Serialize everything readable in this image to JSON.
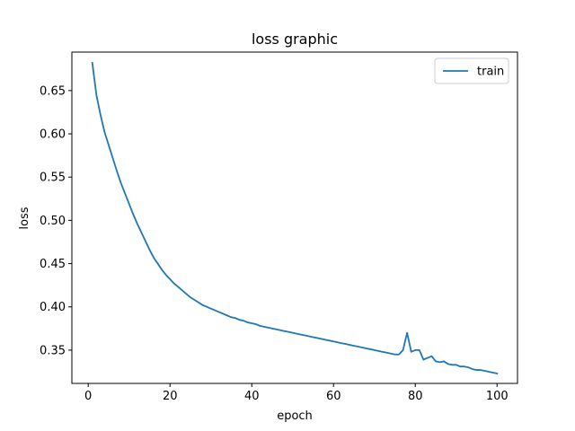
{
  "chart_data": {
    "type": "line",
    "title": "loss graphic",
    "xlabel": "epoch",
    "ylabel": "loss",
    "xlim": [
      -4.0,
      105.0
    ],
    "ylim": [
      0.3115,
      0.6945
    ],
    "xticks": [
      0,
      20,
      40,
      60,
      80,
      100
    ],
    "yticks": [
      0.35,
      0.4,
      0.45,
      0.5,
      0.55,
      0.6,
      0.65
    ],
    "ytick_labels": [
      "0.35",
      "0.40",
      "0.45",
      "0.50",
      "0.55",
      "0.60",
      "0.65"
    ],
    "grid": false,
    "legend": {
      "position": "top-right"
    },
    "series": [
      {
        "name": "train",
        "color": "#1f77b4",
        "x": [
          1,
          2,
          3,
          4,
          5,
          6,
          7,
          8,
          9,
          10,
          11,
          12,
          13,
          14,
          15,
          16,
          17,
          18,
          19,
          20,
          21,
          22,
          23,
          24,
          25,
          26,
          27,
          28,
          29,
          30,
          31,
          32,
          33,
          34,
          35,
          36,
          37,
          38,
          39,
          40,
          41,
          42,
          43,
          44,
          45,
          46,
          47,
          48,
          49,
          50,
          51,
          52,
          53,
          54,
          55,
          56,
          57,
          58,
          59,
          60,
          61,
          62,
          63,
          64,
          65,
          66,
          67,
          68,
          69,
          70,
          71,
          72,
          73,
          74,
          75,
          76,
          77,
          78,
          79,
          80,
          81,
          82,
          83,
          84,
          85,
          86,
          87,
          88,
          89,
          90,
          91,
          92,
          93,
          94,
          95,
          96,
          97,
          98,
          99,
          100
        ],
        "values": [
          0.682,
          0.645,
          0.622,
          0.602,
          0.587,
          0.572,
          0.557,
          0.543,
          0.531,
          0.519,
          0.507,
          0.496,
          0.486,
          0.476,
          0.466,
          0.457,
          0.45,
          0.443,
          0.437,
          0.432,
          0.427,
          0.423,
          0.419,
          0.415,
          0.411,
          0.408,
          0.405,
          0.402,
          0.4,
          0.398,
          0.396,
          0.394,
          0.392,
          0.39,
          0.388,
          0.387,
          0.385,
          0.384,
          0.382,
          0.381,
          0.38,
          0.378,
          0.377,
          0.376,
          0.375,
          0.374,
          0.373,
          0.372,
          0.371,
          0.37,
          0.369,
          0.368,
          0.367,
          0.366,
          0.365,
          0.364,
          0.363,
          0.362,
          0.361,
          0.36,
          0.359,
          0.358,
          0.357,
          0.356,
          0.355,
          0.354,
          0.353,
          0.352,
          0.351,
          0.35,
          0.349,
          0.348,
          0.347,
          0.346,
          0.345,
          0.345,
          0.35,
          0.37,
          0.348,
          0.35,
          0.35,
          0.339,
          0.341,
          0.343,
          0.337,
          0.336,
          0.337,
          0.334,
          0.333,
          0.333,
          0.331,
          0.331,
          0.33,
          0.328,
          0.327,
          0.327,
          0.326,
          0.325,
          0.324,
          0.323
        ]
      }
    ]
  }
}
